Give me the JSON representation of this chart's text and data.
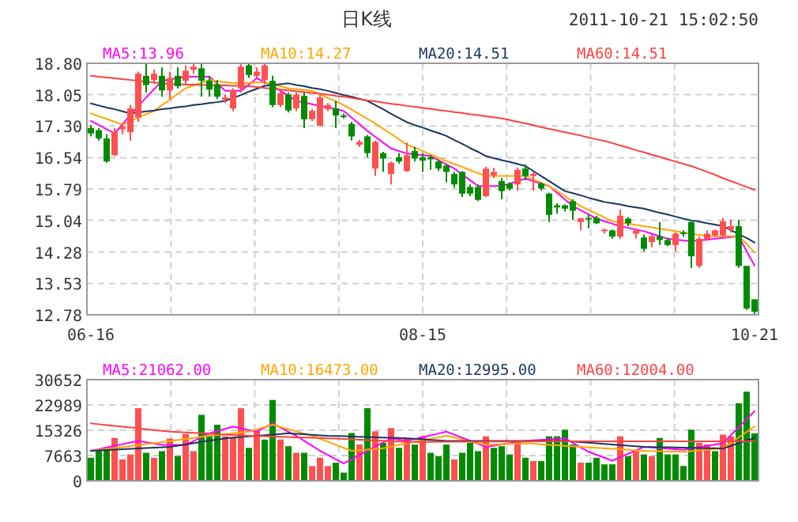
{
  "chart_data": [
    {
      "type": "candlestick",
      "title": "日K线",
      "subtitle": "2011-10-21 15:02:50",
      "categories": [
        "06-16",
        null,
        null,
        null,
        null,
        null,
        null,
        null,
        null,
        null,
        null,
        null,
        null,
        null,
        null,
        null,
        null,
        null,
        null,
        null,
        null,
        null,
        null,
        null,
        null,
        null,
        null,
        null,
        null,
        null,
        null,
        null,
        null,
        null,
        null,
        null,
        null,
        null,
        null,
        null,
        null,
        null,
        "08-15",
        null,
        null,
        null,
        null,
        null,
        null,
        null,
        null,
        null,
        null,
        null,
        null,
        null,
        null,
        null,
        null,
        null,
        null,
        null,
        null,
        null,
        null,
        null,
        null,
        null,
        null,
        null,
        null,
        null,
        null,
        null,
        null,
        null,
        null,
        null,
        null,
        null,
        null,
        null,
        null,
        null,
        "10-21"
      ],
      "ohlc": [
        [
          17.25,
          17.32,
          17.05,
          17.12
        ],
        [
          17.2,
          17.25,
          16.95,
          17.0
        ],
        [
          17.0,
          17.1,
          16.42,
          16.45
        ],
        [
          16.6,
          17.25,
          16.58,
          17.15
        ],
        [
          17.22,
          17.35,
          17.1,
          17.28
        ],
        [
          17.15,
          17.8,
          16.95,
          17.72
        ],
        [
          17.5,
          18.6,
          17.4,
          18.55
        ],
        [
          18.5,
          18.8,
          18.1,
          18.28
        ],
        [
          18.4,
          18.65,
          18.3,
          18.55
        ],
        [
          18.5,
          18.7,
          18.0,
          18.15
        ],
        [
          18.15,
          18.6,
          17.95,
          18.45
        ],
        [
          18.5,
          18.7,
          18.2,
          18.25
        ],
        [
          18.38,
          18.75,
          18.3,
          18.62
        ],
        [
          18.64,
          18.78,
          18.55,
          18.72
        ],
        [
          18.68,
          18.78,
          18.0,
          18.38
        ],
        [
          18.38,
          18.5,
          18.0,
          18.17
        ],
        [
          18.3,
          18.4,
          17.95,
          18.0
        ],
        [
          17.93,
          18.05,
          17.85,
          17.98
        ],
        [
          17.72,
          18.2,
          17.65,
          18.15
        ],
        [
          18.2,
          18.78,
          18.1,
          18.72
        ],
        [
          18.75,
          18.8,
          18.45,
          18.52
        ],
        [
          18.5,
          18.7,
          18.45,
          18.6
        ],
        [
          18.4,
          18.78,
          18.3,
          18.75
        ],
        [
          18.38,
          18.5,
          17.75,
          17.8
        ],
        [
          17.8,
          18.15,
          17.75,
          18.08
        ],
        [
          18.05,
          18.1,
          17.62,
          17.67
        ],
        [
          17.72,
          18.1,
          17.65,
          18.05
        ],
        [
          18.02,
          18.1,
          17.25,
          17.46
        ],
        [
          17.46,
          17.7,
          17.42,
          17.66
        ],
        [
          17.3,
          18.05,
          17.3,
          17.98
        ],
        [
          17.7,
          17.85,
          17.65,
          17.8
        ],
        [
          17.72,
          17.9,
          17.25,
          17.55
        ],
        [
          17.55,
          17.6,
          17.48,
          17.52
        ],
        [
          17.35,
          17.4,
          16.95,
          17.05
        ],
        [
          16.85,
          16.97,
          16.8,
          16.92
        ],
        [
          17.05,
          17.08,
          16.55,
          16.65
        ],
        [
          16.28,
          16.95,
          16.1,
          16.92
        ],
        [
          16.65,
          16.68,
          16.2,
          16.52
        ],
        [
          16.15,
          16.45,
          15.9,
          16.42
        ],
        [
          16.55,
          16.65,
          16.4,
          16.45
        ],
        [
          16.22,
          16.9,
          16.2,
          16.6
        ],
        [
          16.7,
          16.8,
          16.45,
          16.52
        ],
        [
          16.55,
          16.65,
          16.2,
          16.47
        ],
        [
          16.55,
          16.6,
          16.25,
          16.5
        ],
        [
          16.45,
          16.5,
          16.22,
          16.28
        ],
        [
          16.35,
          16.4,
          15.95,
          16.2
        ],
        [
          16.15,
          16.2,
          15.82,
          15.9
        ],
        [
          16.2,
          16.22,
          15.6,
          15.68
        ],
        [
          15.84,
          15.9,
          15.62,
          15.68
        ],
        [
          15.84,
          15.9,
          15.5,
          15.53
        ],
        [
          15.62,
          16.32,
          15.6,
          16.28
        ],
        [
          16.12,
          16.3,
          16.05,
          16.2
        ],
        [
          15.98,
          16.05,
          15.55,
          15.74
        ],
        [
          15.92,
          15.95,
          15.75,
          15.8
        ],
        [
          15.9,
          16.3,
          15.75,
          16.25
        ],
        [
          16.28,
          16.38,
          16.0,
          16.1
        ],
        [
          16.1,
          16.2,
          15.75,
          16.15
        ],
        [
          15.92,
          15.95,
          15.75,
          15.8
        ],
        [
          15.68,
          15.7,
          15.0,
          15.17
        ],
        [
          15.4,
          15.45,
          15.2,
          15.35
        ],
        [
          15.4,
          15.42,
          15.25,
          15.32
        ],
        [
          15.5,
          15.55,
          15.05,
          15.27
        ],
        [
          15.0,
          15.1,
          14.8,
          15.09
        ],
        [
          15.1,
          15.2,
          14.85,
          15.08
        ],
        [
          15.1,
          15.15,
          14.95,
          14.97
        ],
        [
          14.78,
          14.85,
          14.72,
          14.82
        ],
        [
          14.8,
          14.82,
          14.6,
          14.65
        ],
        [
          14.65,
          15.3,
          14.6,
          15.15
        ],
        [
          15.08,
          15.12,
          14.9,
          14.97
        ],
        [
          14.72,
          14.85,
          14.6,
          14.8
        ],
        [
          14.63,
          14.7,
          14.3,
          14.36
        ],
        [
          14.52,
          14.7,
          14.4,
          14.66
        ],
        [
          14.66,
          15.0,
          14.45,
          14.57
        ],
        [
          14.57,
          14.62,
          14.42,
          14.45
        ],
        [
          14.45,
          14.75,
          14.3,
          14.72
        ],
        [
          14.75,
          14.8,
          14.65,
          14.72
        ],
        [
          15.0,
          15.05,
          13.9,
          14.18
        ],
        [
          13.95,
          14.65,
          13.9,
          14.6
        ],
        [
          14.6,
          14.8,
          14.55,
          14.72
        ],
        [
          14.68,
          14.82,
          14.65,
          14.8
        ],
        [
          14.68,
          15.1,
          14.65,
          15.02
        ],
        [
          14.82,
          15.05,
          14.75,
          14.9
        ],
        [
          14.9,
          15.05,
          13.9,
          13.95
        ],
        [
          13.95,
          13.95,
          12.9,
          12.93
        ],
        [
          13.15,
          13.15,
          12.8,
          12.85
        ]
      ],
      "ylim": [
        12.78,
        18.8
      ],
      "yticks": [
        12.78,
        13.53,
        14.28,
        15.04,
        15.79,
        16.54,
        {
          "value": 17.3,
          "label": "17.30"
        },
        18.05,
        {
          "value": 18.8,
          "label": "18.80"
        }
      ],
      "series": [
        {
          "name": "MA5:13.96",
          "type": "line",
          "color": "#ff00ff",
          "values": [
            17.42,
            17.32,
            17.22,
            17.12,
            17.34,
            17.56,
            17.78,
            17.98,
            18.18,
            18.38,
            18.41,
            18.45,
            18.48,
            18.48,
            18.48,
            18.48,
            18.31,
            18.14,
            18.14,
            18.14,
            18.29,
            18.44,
            18.35,
            18.26,
            18.14,
            18.02,
            17.9,
            17.86,
            17.82,
            17.78,
            17.74,
            17.7,
            17.66,
            17.5,
            17.34,
            17.18,
            17.04,
            16.9,
            16.76,
            16.7,
            16.64,
            16.62,
            16.6,
            16.58,
            16.48,
            16.38,
            16.28,
            16.14,
            16.0,
            15.86,
            15.86,
            15.86,
            15.86,
            15.92,
            15.98,
            16.04,
            15.98,
            15.92,
            15.86,
            15.7,
            15.54,
            15.38,
            15.28,
            15.18,
            15.08,
            15.02,
            14.96,
            14.9,
            14.86,
            14.82,
            14.78,
            14.72,
            14.66,
            14.6,
            14.58,
            14.56,
            14.54,
            14.56,
            14.58,
            14.6,
            14.62,
            14.64,
            14.66,
            14.3,
            13.96
          ]
        },
        {
          "name": "MA10:14.27",
          "type": "line",
          "color": "#ffa500",
          "values": [
            17.6,
            17.53,
            17.47,
            17.4,
            17.33,
            17.41,
            17.5,
            17.58,
            17.66,
            17.8,
            17.93,
            18.07,
            18.2,
            18.27,
            18.33,
            18.4,
            18.37,
            18.35,
            18.32,
            18.33,
            18.33,
            18.34,
            18.34,
            18.29,
            18.25,
            18.2,
            18.18,
            18.16,
            18.14,
            18.06,
            17.97,
            17.89,
            17.8,
            17.69,
            17.58,
            17.47,
            17.36,
            17.23,
            17.11,
            16.98,
            16.85,
            16.78,
            16.7,
            16.62,
            16.54,
            16.46,
            16.39,
            16.32,
            16.24,
            16.17,
            16.1,
            16.1,
            16.1,
            16.1,
            16.1,
            16.1,
            16.02,
            15.94,
            15.86,
            15.74,
            15.62,
            15.5,
            15.38,
            15.29,
            15.2,
            15.11,
            15.02,
            14.99,
            14.96,
            14.93,
            14.9,
            14.87,
            14.84,
            14.81,
            14.78,
            14.75,
            14.72,
            14.69,
            14.66,
            14.66,
            14.66,
            14.66,
            14.66,
            14.48,
            14.27
          ]
        },
        {
          "name": "MA20:14.51",
          "type": "line",
          "color": "#1a3560",
          "values": [
            17.84,
            17.79,
            17.74,
            17.7,
            17.65,
            17.6,
            17.62,
            17.65,
            17.67,
            17.7,
            17.72,
            17.75,
            17.77,
            17.8,
            17.82,
            17.85,
            17.87,
            17.9,
            17.97,
            18.04,
            18.12,
            18.19,
            18.26,
            18.28,
            18.3,
            18.32,
            18.28,
            18.25,
            18.21,
            18.18,
            18.14,
            18.09,
            18.04,
            18.0,
            17.95,
            17.9,
            17.8,
            17.7,
            17.59,
            17.49,
            17.39,
            17.32,
            17.26,
            17.19,
            17.13,
            17.06,
            16.96,
            16.87,
            16.77,
            16.68,
            16.58,
            16.53,
            16.48,
            16.44,
            16.39,
            16.34,
            16.22,
            16.1,
            15.98,
            15.86,
            15.74,
            15.69,
            15.64,
            15.58,
            15.53,
            15.48,
            15.45,
            15.42,
            15.38,
            15.35,
            15.32,
            15.27,
            15.22,
            15.18,
            15.13,
            15.08,
            15.04,
            15.01,
            14.97,
            14.94,
            14.9,
            14.81,
            14.71,
            14.62,
            14.51
          ]
        },
        {
          "name": "MA60:14.51",
          "type": "line",
          "color": "#ff4040",
          "values": [
            18.5,
            18.48,
            18.46,
            18.44,
            18.42,
            18.4,
            18.38,
            18.36,
            18.34,
            18.32,
            18.3,
            18.3,
            18.29,
            18.29,
            18.28,
            18.28,
            18.27,
            18.27,
            18.26,
            18.26,
            18.25,
            18.23,
            18.21,
            18.19,
            18.17,
            18.15,
            18.13,
            18.11,
            18.09,
            18.07,
            18.05,
            18.02,
            18.0,
            17.97,
            17.94,
            17.91,
            17.89,
            17.86,
            17.83,
            17.81,
            17.78,
            17.76,
            17.73,
            17.71,
            17.68,
            17.66,
            17.63,
            17.61,
            17.58,
            17.56,
            17.53,
            17.51,
            17.48,
            17.44,
            17.4,
            17.36,
            17.32,
            17.27,
            17.23,
            17.19,
            17.15,
            17.11,
            17.07,
            17.02,
            16.98,
            16.94,
            16.89,
            16.83,
            16.78,
            16.72,
            16.67,
            16.61,
            16.56,
            16.5,
            16.45,
            16.39,
            16.34,
            16.27,
            16.2,
            16.13,
            16.05,
            15.98,
            15.91,
            15.84,
            15.77
          ]
        }
      ],
      "grid": true,
      "legend": "top"
    },
    {
      "type": "bar",
      "categories": [
        null,
        null,
        null,
        null,
        null,
        null,
        null,
        null,
        null,
        null,
        null,
        null,
        null,
        null,
        null,
        null,
        null,
        null,
        null,
        null,
        null,
        null,
        null,
        null,
        null,
        null,
        null,
        null,
        null,
        null,
        null,
        null,
        null,
        null,
        null,
        null,
        null,
        null,
        null,
        null,
        null,
        null,
        null,
        null,
        null,
        null,
        null,
        null,
        null,
        null,
        null,
        null,
        null,
        null,
        null,
        null,
        null,
        null,
        null,
        null,
        null,
        null,
        null,
        null,
        null,
        null,
        null,
        null,
        null,
        null,
        null,
        null,
        null,
        null,
        null,
        null,
        null,
        null,
        null,
        null,
        null,
        null,
        null,
        null,
        null
      ],
      "ylim": [
        0,
        30652
      ],
      "yticks": [
        0,
        7663,
        15326,
        22989,
        30652
      ],
      "tick_labels": "y",
      "series": [
        {
          "type": "bar",
          "values": [
            7000,
            9500,
            10000,
            13000,
            6500,
            8000,
            22000,
            8500,
            7000,
            9000,
            12800,
            7500,
            14200,
            9000,
            20000,
            13500,
            17000,
            13500,
            13000,
            22000,
            10000,
            15000,
            12500,
            24500,
            12500,
            10500,
            8500,
            8500,
            4500,
            7000,
            4500,
            5500,
            2500,
            14500,
            11000,
            22000,
            15000,
            11500,
            16000,
            10000,
            13000,
            11000,
            13500,
            8500,
            7500,
            11000,
            6500,
            8500,
            11500,
            9000,
            13500,
            10000,
            10500,
            8000,
            12000,
            7000,
            6000,
            6000,
            13500,
            13500,
            15500,
            11000,
            5500,
            5500,
            7000,
            5000,
            5000,
            13500,
            7500,
            9000,
            8000,
            7500,
            13000,
            8000,
            8000,
            4500,
            15500,
            11500,
            11000,
            9000,
            14000,
            13500,
            23500,
            27000,
            14400
          ],
          "colors": [
            "#008c00",
            "#008c00",
            "#008c00",
            "#ff5050",
            "#ff5050",
            "#ff5050",
            "#ff5050",
            "#008c00",
            "#ff5050",
            "#008c00",
            "#ff5050",
            "#008c00",
            "#ff5050",
            "#ff5050",
            "#008c00",
            "#008c00",
            "#008c00",
            "#ff5050",
            "#ff5050",
            "#ff5050",
            "#008c00",
            "#ff5050",
            "#008c00",
            "#008c00",
            "#ff5050",
            "#008c00",
            "#ff5050",
            "#008c00",
            "#ff5050",
            "#ff5050",
            "#ff5050",
            "#008c00",
            "#008c00",
            "#008c00",
            "#ff5050",
            "#008c00",
            "#ff5050",
            "#008c00",
            "#ff5050",
            "#008c00",
            "#ff5050",
            "#008c00",
            "#ff5050",
            "#008c00",
            "#008c00",
            "#008c00",
            "#ff5050",
            "#008c00",
            "#008c00",
            "#008c00",
            "#ff5050",
            "#008c00",
            "#008c00",
            "#008c00",
            "#ff5050",
            "#008c00",
            "#ff5050",
            "#008c00",
            "#008c00",
            "#008c00",
            "#008c00",
            "#008c00",
            "#ff5050",
            "#008c00",
            "#008c00",
            "#008c00",
            "#008c00",
            "#ff5050",
            "#008c00",
            "#ff5050",
            "#008c00",
            "#ff5050",
            "#008c00",
            "#008c00",
            "#008c00",
            "#008c00",
            "#008c00",
            "#ff5050",
            "#ff5050",
            "#008c00",
            "#ff5050",
            "#ff5050",
            "#008c00",
            "#008c00",
            "#008c00"
          ]
        },
        {
          "name": "MA5:21062.00",
          "type": "line",
          "color": "#ff00ff",
          "values": [
            9100,
            9600,
            10100,
            10600,
            11100,
            11600,
            12100,
            11700,
            11300,
            10900,
            10900,
            10900,
            10900,
            12070,
            13230,
            14400,
            15070,
            15730,
            16400,
            15900,
            15400,
            14900,
            16150,
            17400,
            16150,
            14900,
            13650,
            12130,
            10620,
            9100,
            7830,
            6570,
            5300,
            6570,
            7830,
            9100,
            10370,
            11630,
            12900,
            12500,
            12100,
            12660,
            13220,
            13780,
            14340,
            14900,
            13980,
            13060,
            12140,
            11220,
            10300,
            10660,
            11020,
            11380,
            11740,
            12100,
            12260,
            12420,
            12580,
            12740,
            12900,
            11530,
            10170,
            8800,
            7900,
            7000,
            6100,
            7150,
            8200,
            9250,
            10300,
            10120,
            9940,
            9760,
            9580,
            9400,
            9800,
            10200,
            10600,
            11000,
            11400,
            13820,
            16230,
            18650,
            21062
          ]
        },
        {
          "name": "MA10:16473.00",
          "type": "line",
          "color": "#ffa500",
          "values": [
            9100,
            9390,
            9680,
            9960,
            10250,
            10540,
            10820,
            11110,
            11400,
            11720,
            12040,
            12370,
            12690,
            13010,
            13330,
            13650,
            13900,
            14150,
            14400,
            14650,
            14900,
            15600,
            16300,
            17000,
            16330,
            15660,
            14990,
            14320,
            13650,
            12740,
            11830,
            10920,
            10010,
            9100,
            9290,
            9480,
            9670,
            9860,
            10370,
            10890,
            11400,
            11850,
            12300,
            12750,
            13200,
            13650,
            13100,
            12550,
            12000,
            11450,
            10900,
            11000,
            11100,
            11200,
            11300,
            11400,
            11240,
            11080,
            10920,
            10760,
            10600,
            10450,
            10300,
            10160,
            10010,
            9860,
            9710,
            9560,
            9400,
            9250,
            9100,
            9040,
            8980,
            8920,
            8860,
            8800,
            9010,
            9220,
            9440,
            9650,
            9860,
            11510,
            13160,
            14820,
            16473
          ]
        },
        {
          "name": "MA20:12995.00",
          "type": "line",
          "color": "#1a3560",
          "values": [
            9100,
            9220,
            9340,
            9460,
            9580,
            9700,
            9820,
            9940,
            10060,
            10180,
            10300,
            10670,
            11040,
            11410,
            11790,
            12160,
            12530,
            12900,
            13090,
            13280,
            13460,
            13650,
            13840,
            14030,
            14210,
            14400,
            14250,
            14100,
            13950,
            13800,
            13650,
            13570,
            13500,
            13420,
            13350,
            13270,
            13200,
            13120,
            13050,
            12970,
            12900,
            12740,
            12580,
            12420,
            12260,
            12100,
            12100,
            12100,
            12100,
            12100,
            12100,
            12100,
            12100,
            12100,
            12100,
            12100,
            12100,
            12100,
            12100,
            12100,
            12100,
            11920,
            11740,
            11560,
            11380,
            11200,
            11020,
            10840,
            10660,
            10480,
            10300,
            10250,
            10200,
            10150,
            10100,
            10050,
            10000,
            9950,
            9900,
            9850,
            9800,
            10600,
            11400,
            12200,
            12995
          ]
        },
        {
          "name": "MA60:12004.00",
          "type": "line",
          "color": "#ff4040",
          "values": [
            17400,
            17150,
            16900,
            16650,
            16400,
            16150,
            15900,
            15650,
            15400,
            15150,
            14900,
            14780,
            14650,
            14530,
            14400,
            14280,
            14150,
            14030,
            13900,
            13780,
            13650,
            13580,
            13500,
            13430,
            13350,
            13280,
            13200,
            13130,
            13050,
            12980,
            12900,
            12790,
            12680,
            12570,
            12460,
            12350,
            12240,
            12130,
            12020,
            11910,
            11800,
            11800,
            11810,
            11820,
            11830,
            11840,
            11850,
            11860,
            11870,
            11880,
            11890,
            11900,
            11910,
            11920,
            11930,
            11940,
            11950,
            11960,
            11970,
            11980,
            11990,
            12000,
            12000,
            12000,
            12000,
            12000,
            12000,
            12000,
            12000,
            12000,
            12000,
            12000,
            12000,
            12000,
            12000,
            12000,
            12000,
            12000,
            12000,
            12000,
            12000,
            12000,
            12000,
            12000,
            12004
          ]
        }
      ],
      "grid": true,
      "legend": "top"
    }
  ]
}
